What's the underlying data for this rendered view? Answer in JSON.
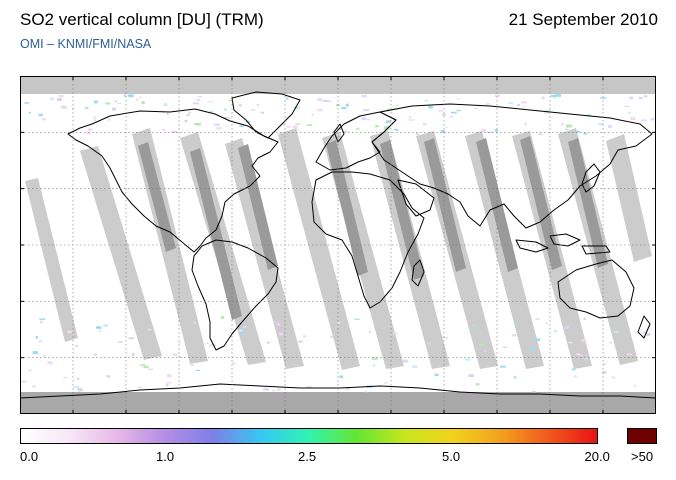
{
  "header": {
    "title": "SO2 vertical column [DU] (TRM)",
    "date": "21 September 2010",
    "credit": "OMI  –  KNMI/FMI/NASA"
  },
  "map": {
    "projection": "equirectangular",
    "lon_range": [
      -180,
      180
    ],
    "lat_range": [
      -90,
      90
    ],
    "lon_ticks": [
      "-150",
      "-120",
      "-90",
      "-60",
      "-30",
      "0",
      "30",
      "60",
      "90",
      "120",
      "150"
    ],
    "lat_ticks": [
      "60",
      "30",
      "0",
      "-30",
      "-60"
    ],
    "gridlines": true,
    "colors": {
      "background": "#ffffff",
      "no_data": "#c6c6c6",
      "polar_no_data": "#a8a8a8",
      "overlap": "#999999",
      "coastline": "#000000"
    }
  },
  "colorbar": {
    "labels": [
      "0.0",
      "1.0",
      "2.5",
      "5.0",
      "20.0",
      ">50"
    ],
    "colors": [
      "#ffffff",
      "#f7e7f7",
      "#e8b8e8",
      "#b38ee6",
      "#7f7fe6",
      "#36c8f2",
      "#31f2b2",
      "#64e632",
      "#c8e61e",
      "#f2d21e",
      "#f2a01e",
      "#f2581e",
      "#e61414"
    ],
    "overflow_color": "#6e0000"
  }
}
